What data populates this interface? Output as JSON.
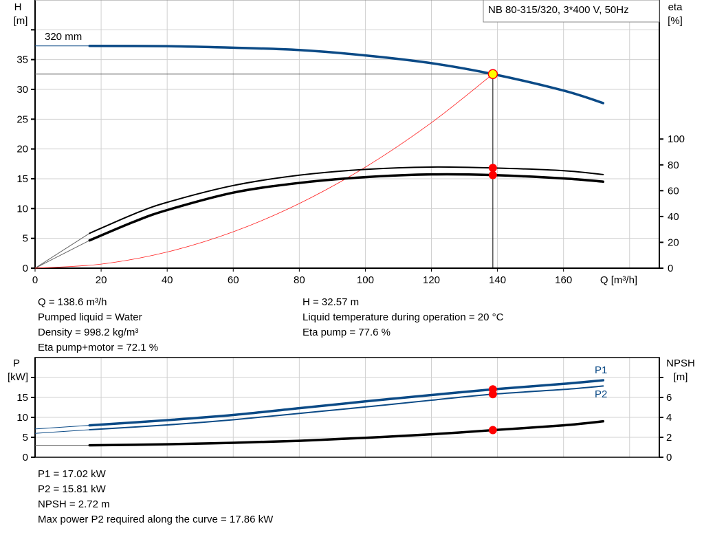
{
  "colors": {
    "pump_curve": "#0b4a86",
    "efficiency": "#000000",
    "system_curve": "#ff2020",
    "operating_point": "#ff0000",
    "duty_fill": "#ffff00",
    "grid": "#d0d0d0"
  },
  "chart_data": [
    {
      "type": "line",
      "title": "NB 80-315/320, 3*400 V, 50Hz",
      "xlabel": "Q [m³/h]",
      "ylabel_left": [
        "H",
        "[m]"
      ],
      "ylabel_right": [
        "eta",
        "[%]"
      ],
      "xlim": [
        0,
        189
      ],
      "ylim_left": [
        0,
        45
      ],
      "ylim_right": [
        0,
        207.7
      ],
      "x_ticks": [
        "0",
        "20",
        "40",
        "60",
        "80",
        "100",
        "120",
        "140",
        "160"
      ],
      "y_ticks_left": [
        "0",
        "5",
        "10",
        "15",
        "20",
        "25",
        "30",
        "35"
      ],
      "y_ticks_right": [
        "0",
        "20",
        "40",
        "60",
        "80",
        "100"
      ],
      "grid": true,
      "operating_point": {
        "Q": 138.6,
        "H": 32.57,
        "eta_pump": 77.6,
        "eta_total": 72.1
      },
      "series": [
        {
          "name": "320 mm",
          "axis": "left",
          "x": [
            16.5,
            40,
            60,
            80,
            100,
            120,
            138.6,
            160,
            172
          ],
          "y": [
            37.3,
            37.25,
            37.0,
            36.6,
            35.7,
            34.4,
            32.57,
            29.8,
            27.7
          ]
        },
        {
          "axis": "right",
          "x": [
            16.5,
            30,
            40,
            60,
            80,
            100,
            120,
            138.6,
            160,
            172
          ],
          "y": [
            27,
            42,
            51,
            64,
            72,
            76.5,
            78.3,
            77.6,
            75.5,
            72.5
          ]
        },
        {
          "axis": "right",
          "x": [
            16.5,
            30,
            40,
            60,
            80,
            100,
            120,
            138.6,
            160,
            172
          ],
          "y": [
            21.5,
            36,
            45,
            58.5,
            66,
            70.5,
            72.6,
            72.1,
            69.5,
            67
          ]
        },
        {
          "axis": "left",
          "x": [
            0,
            20,
            40,
            60,
            80,
            100,
            120,
            138.6
          ],
          "y": [
            0,
            0.68,
            2.71,
            6.1,
            10.85,
            16.95,
            24.41,
            32.57
          ]
        }
      ]
    },
    {
      "type": "line",
      "xlim": [
        0,
        189
      ],
      "ylabel_left": [
        "P",
        "[kW]"
      ],
      "ylabel_right": [
        "NPSH",
        "[m]"
      ],
      "ylim_left": [
        0,
        25
      ],
      "ylim_right": [
        0,
        10
      ],
      "y_ticks_left": [
        "0",
        "5",
        "10",
        "15"
      ],
      "y_ticks_right": [
        "0",
        "2",
        "4",
        "6"
      ],
      "grid": true,
      "series": [
        {
          "name": "P1",
          "axis": "left",
          "x": [
            16.5,
            40,
            60,
            80,
            100,
            120,
            138.6,
            160,
            172
          ],
          "y": [
            8.0,
            9.3,
            10.6,
            12.3,
            14.0,
            15.6,
            17.02,
            18.4,
            19.3
          ]
        },
        {
          "name": "P2",
          "axis": "left",
          "x": [
            16.5,
            40,
            60,
            80,
            100,
            120,
            138.6,
            160,
            172
          ],
          "y": [
            6.9,
            8.1,
            9.4,
            11.0,
            12.6,
            14.3,
            15.81,
            17.0,
            17.86
          ]
        },
        {
          "axis": "right",
          "x": [
            16.5,
            40,
            60,
            80,
            100,
            120,
            138.6,
            160,
            172
          ],
          "y": [
            1.2,
            1.3,
            1.45,
            1.65,
            1.95,
            2.3,
            2.72,
            3.2,
            3.6
          ]
        }
      ],
      "operating_point": {
        "Q": 138.6,
        "P1": 17.02,
        "P2": 15.81,
        "NPSH": 2.72
      }
    }
  ],
  "results_top": {
    "q": "Q = 138.6 m³/h",
    "liquid": "Pumped liquid = Water",
    "density": "Density = 998.2 kg/m³",
    "eta_total": "Eta pump+motor = 72.1 %",
    "h": "H = 32.57 m",
    "temp": "Liquid temperature during operation = 20 °C",
    "eta_pump": "Eta pump = 77.6 %"
  },
  "results_bottom": {
    "p1": "P1 = 17.02 kW",
    "p2": "P2 = 15.81 kW",
    "npsh": "NPSH = 2.72 m",
    "max_p2": "Max power P2 required along the curve = 17.86 kW"
  }
}
